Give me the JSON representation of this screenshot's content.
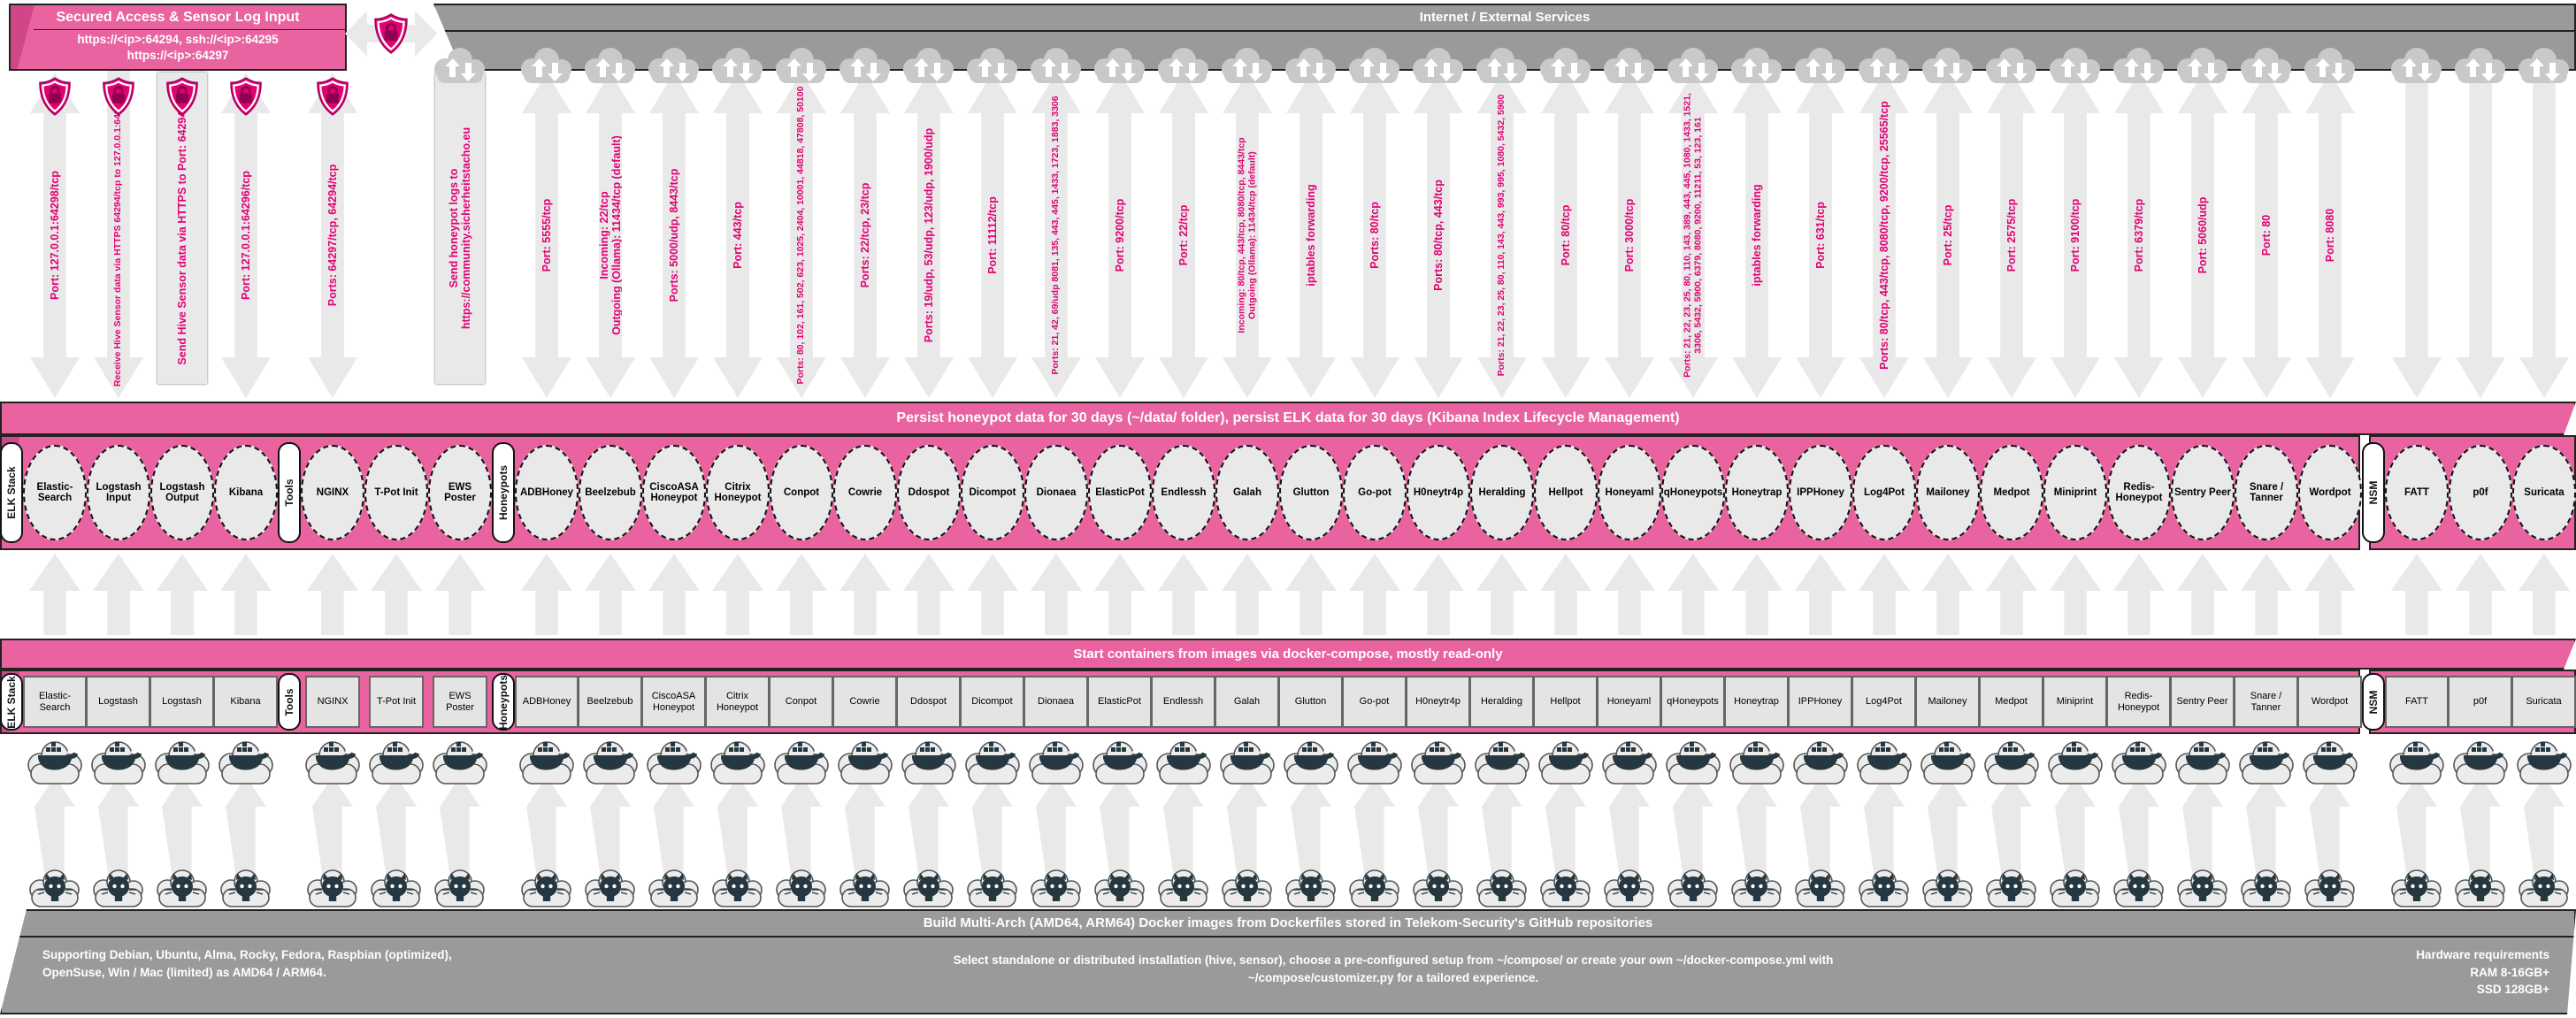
{
  "colors": {
    "magenta_accent": "#e20074",
    "pink_fill": "#e8639f",
    "gray_bar": "#9a9a9a",
    "arrow_fill": "#e9e9e9"
  },
  "secured_access": {
    "title": "Secured Access & Sensor Log Input",
    "line1": "https://<ip>:64294, ssh://<ip>:64295",
    "line2": "https://<ip>:64297"
  },
  "internet_bar": {
    "title": "Internet / External Services"
  },
  "banners": {
    "persist": "Persist honeypot data for 30 days (~/data/ folder), persist ELK data for 30 days (Kibana Index Lifecycle Management)",
    "start": "Start containers from images via docker-compose, mostly read-only"
  },
  "bottom_bar": {
    "title": "Build Multi-Arch (AMD64, ARM64) Docker images from Dockerfiles stored in Telekom-Security's GitHub repositories",
    "supporting": "Supporting Debian, Ubuntu, Alma, Rocky, Fedora, Raspbian (optimized), OpenSuse, Win / Mac (limited) as AMD64 / ARM64.",
    "select": "Select standalone or distributed installation (hive, sensor), choose a pre-configured setup from ~/compose/ or create your own ~/docker-compose.yml with ~/compose/customizer.py for a tailored experience.",
    "hardware_title": "Hardware requirements",
    "ram": "RAM 8-16GB+",
    "ssd": "SSD 128GB+"
  },
  "columns": [
    {
      "kind": "pill",
      "label": "ELK Stack"
    },
    {
      "kind": "node",
      "label": "Elastic-Search",
      "arrow": {
        "type": "double",
        "shield": true,
        "label": "Port: 127.0.0.1:64298/tcp"
      }
    },
    {
      "kind": "node",
      "label": "Logstash Input",
      "label2": "Logstash",
      "arrow": {
        "type": "down",
        "shield": true,
        "label": "Receive Hive Sensor data via HTTPS 64294/tcp to 127.0.0.1:64305/tcp"
      }
    },
    {
      "kind": "node",
      "label": "Logstash Output",
      "label2": "Logstash",
      "arrow": {
        "type": "up",
        "shield": true,
        "label": "Send Hive Sensor data via HTTPS to Port: 64294/tcp"
      }
    },
    {
      "kind": "node",
      "label": "Kibana",
      "arrow": {
        "type": "double",
        "shield": true,
        "label": "Port: 127.0.0.1:64296/tcp"
      }
    },
    {
      "kind": "pill",
      "label": "Tools"
    },
    {
      "kind": "node",
      "label": "NGINX",
      "arrow": {
        "type": "double",
        "shield": true,
        "label": "Ports: 64297/tcp, 64294/tcp"
      }
    },
    {
      "kind": "node",
      "label": "T-Pot Init",
      "label2": "T-Pot Init"
    },
    {
      "kind": "node",
      "label": "EWS Poster",
      "arrow": {
        "type": "up",
        "cloud": true,
        "label": "Send honeypot logs to\nhttps://community.sicherheitstacho.eu"
      }
    },
    {
      "kind": "pill",
      "label": "Honeypots"
    },
    {
      "kind": "node",
      "label": "ADBHoney",
      "arrow": {
        "type": "double",
        "cloud": true,
        "label": "Port: 5555/tcp"
      }
    },
    {
      "kind": "node",
      "label": "Beelzebub",
      "arrow": {
        "type": "double",
        "cloud": true,
        "label": "Incoming: 22/tcp\nOutgoing (Ollama): 11434/tcp (default)"
      }
    },
    {
      "kind": "node",
      "label": "CiscoASA Honeypot",
      "arrow": {
        "type": "double",
        "cloud": true,
        "label": "Ports: 5000/udp, 8443/tcp"
      }
    },
    {
      "kind": "node",
      "label": "Citrix Honeypot",
      "arrow": {
        "type": "double",
        "cloud": true,
        "label": "Port: 443/tcp"
      }
    },
    {
      "kind": "node",
      "label": "Conpot",
      "arrow": {
        "type": "double",
        "cloud": true,
        "label": "Ports: 80, 102, 161, 502, 623, 1025, 2404, 10001, 44818, 47808, 50100"
      }
    },
    {
      "kind": "node",
      "label": "Cowrie",
      "arrow": {
        "type": "double",
        "cloud": true,
        "label": "Ports: 22/tcp, 23/tcp"
      }
    },
    {
      "kind": "node",
      "label": "Ddospot",
      "arrow": {
        "type": "double",
        "cloud": true,
        "label": "Ports: 19/udp, 53/udp, 123/udp, 1900/udp"
      }
    },
    {
      "kind": "node",
      "label": "Dicompot",
      "arrow": {
        "type": "double",
        "cloud": true,
        "label": "Port: 11112/tcp"
      }
    },
    {
      "kind": "node",
      "label": "Dionaea",
      "arrow": {
        "type": "double",
        "cloud": true,
        "label": "Ports: 21, 42, 69/udp 8081, 135, 443, 445, 1433, 1723, 1883, 3306"
      }
    },
    {
      "kind": "node",
      "label": "ElasticPot",
      "arrow": {
        "type": "double",
        "cloud": true,
        "label": "Port: 9200/tcp"
      }
    },
    {
      "kind": "node",
      "label": "Endlessh",
      "arrow": {
        "type": "double",
        "cloud": true,
        "label": "Port: 22/tcp"
      }
    },
    {
      "kind": "node",
      "label": "Galah",
      "arrow": {
        "type": "double",
        "cloud": true,
        "label": "Incoming: 80/tcp, 443/tcp, 8080/tcp, 8443/tcp\nOutgoing (Ollama): 11434/tcp (default)"
      }
    },
    {
      "kind": "node",
      "label": "Glutton",
      "arrow": {
        "type": "double",
        "cloud": true,
        "label": "iptables forwarding"
      }
    },
    {
      "kind": "node",
      "label": "Go-pot",
      "arrow": {
        "type": "double",
        "cloud": true,
        "label": "Ports: 80/tcp"
      }
    },
    {
      "kind": "node",
      "label": "H0neytr4p",
      "arrow": {
        "type": "double",
        "cloud": true,
        "label": "Ports: 80/tcp, 443/tcp"
      }
    },
    {
      "kind": "node",
      "label": "Heralding",
      "arrow": {
        "type": "double",
        "cloud": true,
        "label": "Ports: 21, 22, 23, 25, 80, 110, 143, 443, 993, 995, 1080, 5432, 5900"
      }
    },
    {
      "kind": "node",
      "label": "Hellpot",
      "arrow": {
        "type": "double",
        "cloud": true,
        "label": "Port: 80/tcp"
      }
    },
    {
      "kind": "node",
      "label": "Honeyaml",
      "arrow": {
        "type": "double",
        "cloud": true,
        "label": "Port: 3000/tcp"
      }
    },
    {
      "kind": "node",
      "label": "qHoneypots",
      "arrow": {
        "type": "double",
        "cloud": true,
        "label": "Ports: 21, 22, 23, 25, 80, 110, 143, 389, 443, 445, 1080, 1433, 1521, 3306, 5432, 5900, 6379, 8080, 9200, 11211, 53, 123, 161"
      }
    },
    {
      "kind": "node",
      "label": "Honeytrap",
      "arrow": {
        "type": "double",
        "cloud": true,
        "label": "iptables forwarding"
      }
    },
    {
      "kind": "node",
      "label": "IPPHoney",
      "arrow": {
        "type": "double",
        "cloud": true,
        "label": "Port: 631/tcp"
      }
    },
    {
      "kind": "node",
      "label": "Log4Pot",
      "arrow": {
        "type": "double",
        "cloud": true,
        "label": "Ports: 80/tcp, 443/tcp, 8080/tcp, 9200/tcp, 25565/tcp"
      }
    },
    {
      "kind": "node",
      "label": "Mailoney",
      "arrow": {
        "type": "double",
        "cloud": true,
        "label": "Port: 25/tcp"
      }
    },
    {
      "kind": "node",
      "label": "Medpot",
      "arrow": {
        "type": "double",
        "cloud": true,
        "label": "Port: 2575/tcp"
      }
    },
    {
      "kind": "node",
      "label": "Miniprint",
      "arrow": {
        "type": "double",
        "cloud": true,
        "label": "Port: 9100/tcp"
      }
    },
    {
      "kind": "node",
      "label": "Redis-Honeypot",
      "arrow": {
        "type": "double",
        "cloud": true,
        "label": "Port: 6379/tcp"
      }
    },
    {
      "kind": "node",
      "label": "Sentry Peer",
      "arrow": {
        "type": "double",
        "cloud": true,
        "label": "Port: 5060/udp"
      }
    },
    {
      "kind": "node",
      "label": "Snare / Tanner",
      "arrow": {
        "type": "double",
        "cloud": true,
        "label": "Port: 80"
      }
    },
    {
      "kind": "node",
      "label": "Wordpot",
      "arrow": {
        "type": "double",
        "cloud": true,
        "label": "Port: 8080"
      }
    },
    {
      "kind": "pill",
      "label": "NSM"
    },
    {
      "kind": "node",
      "label": "FATT",
      "arrow": {
        "type": "down",
        "cloud": true,
        "label": ""
      }
    },
    {
      "kind": "node",
      "label": "p0f",
      "arrow": {
        "type": "down",
        "cloud": true,
        "label": ""
      }
    },
    {
      "kind": "node",
      "label": "Suricata",
      "arrow": {
        "type": "down",
        "cloud": true,
        "label": ""
      }
    }
  ]
}
